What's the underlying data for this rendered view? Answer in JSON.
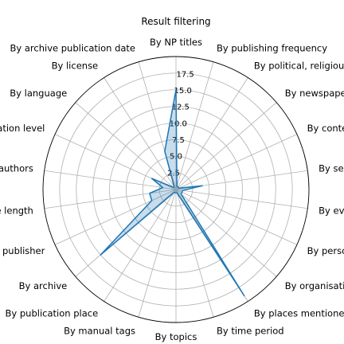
{
  "chart_data": {
    "type": "radar",
    "title": "Result filtering",
    "categories": [
      "By NP titles",
      "By publishing frequency",
      "By political, religious, ... orientation of newspaper",
      "By newspaper thematic (metadata)",
      "By content types",
      "By sections/rubriques",
      "By events",
      "By persons",
      "By organisations",
      "By places mentioned in text",
      "By time period",
      "By topics",
      "By manual tags",
      "By publication place",
      "By archive",
      "By publisher",
      "By article length",
      "By authors",
      "By segmentation level",
      "By language",
      "By license",
      "By archive publication date"
    ],
    "values": [
      15.0,
      0.5,
      0.5,
      0.5,
      0.5,
      4.0,
      1.0,
      1.0,
      1.0,
      19.0,
      0.5,
      0.5,
      0.5,
      0.5,
      15.0,
      4.0,
      4.0,
      2.0,
      4.0,
      0.5,
      0.5,
      6.0
    ],
    "r_ticks": [
      "2.5",
      "5.0",
      "7.5",
      "10.0",
      "12.5",
      "15.0",
      "17.5"
    ],
    "r_tick_values": [
      2.5,
      5.0,
      7.5,
      10.0,
      12.5,
      15.0,
      17.5
    ],
    "rlim": [
      0,
      20
    ],
    "grid": true,
    "series_color": "#1f77b4"
  }
}
